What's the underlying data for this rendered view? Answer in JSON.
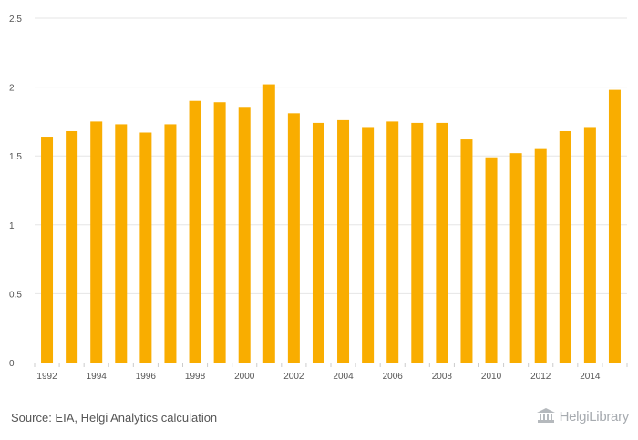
{
  "chart_data": {
    "type": "bar",
    "title": "",
    "xlabel": "",
    "ylabel": "",
    "ylim": [
      0,
      2.5
    ],
    "yticks": [
      0,
      0.5,
      1,
      1.5,
      2,
      2.5
    ],
    "ytick_labels": [
      "0",
      "0.5",
      "1",
      "1.5",
      "2",
      "2.5"
    ],
    "categories": [
      "1992",
      "1993",
      "1994",
      "1995",
      "1996",
      "1997",
      "1998",
      "1999",
      "2000",
      "2001",
      "2002",
      "2003",
      "2004",
      "2005",
      "2006",
      "2007",
      "2008",
      "2009",
      "2010",
      "2011",
      "2012",
      "2013",
      "2014",
      "2015"
    ],
    "xtick_labels": [
      "1992",
      "1994",
      "1996",
      "1998",
      "2000",
      "2002",
      "2004",
      "2006",
      "2008",
      "2010",
      "2012",
      "2014"
    ],
    "values": [
      1.64,
      1.68,
      1.75,
      1.73,
      1.67,
      1.73,
      1.9,
      1.89,
      1.85,
      2.02,
      1.81,
      1.74,
      1.76,
      1.71,
      1.75,
      1.74,
      1.74,
      1.62,
      1.49,
      1.52,
      1.55,
      1.68,
      1.71,
      1.98
    ],
    "bar_color": "#f9ad00",
    "grid": true
  },
  "footer": {
    "source": "Source: EIA, Helgi Analytics calculation",
    "logo_text": "HelgiLibrary"
  },
  "colors": {
    "grid": "#e6e6e6",
    "axis": "#cccccc",
    "text": "#555555"
  }
}
